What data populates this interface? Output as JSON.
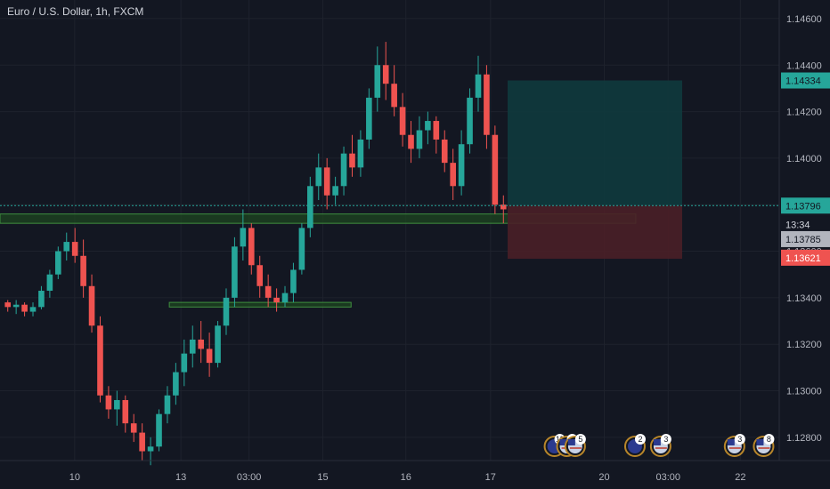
{
  "header": {
    "symbol_title": "Euro / U.S. Dollar, 1h, FXCM"
  },
  "colors": {
    "background": "#131722",
    "grid": "#1e222d",
    "up": "#26a69a",
    "down": "#ef5350",
    "axis_text": "#b2b5be",
    "profit_zone": "#0f3a3d",
    "loss_zone": "#4a1f27",
    "support_zone": "#1e4620",
    "support_border": "#3f8f3f"
  },
  "price_axis": {
    "ticks": [
      "1.14600",
      "1.14400",
      "1.14200",
      "1.14000",
      "1.13800",
      "1.13600",
      "1.13400",
      "1.13200",
      "1.13000",
      "1.12800"
    ],
    "range": [
      1.127,
      1.1468
    ]
  },
  "price_tags": [
    {
      "label": "1.14334",
      "price": 1.14334,
      "bg": "#26a69a",
      "fg": "#131722"
    },
    {
      "label": "1.13796",
      "price": 1.13796,
      "bg": "#26a69a",
      "fg": "#131722"
    },
    {
      "label": "13:34",
      "price": 1.13715,
      "bg": "#131722",
      "fg": "#d1d4dc"
    },
    {
      "label": "1.13785",
      "price": 1.13652,
      "bg": "#b2b5be",
      "fg": "#131722"
    },
    {
      "label": "1.13621",
      "price": 1.13572,
      "bg": "#ef5350",
      "fg": "#ffffff"
    }
  ],
  "time_axis": {
    "labels": [
      "10",
      "13",
      "03:00",
      "15",
      "16",
      "17",
      "20",
      "03:00",
      "22"
    ],
    "positions": [
      0.09,
      0.218,
      0.3,
      0.389,
      0.489,
      0.591,
      0.728,
      0.805,
      0.892
    ]
  },
  "event_markers": [
    {
      "label": "11",
      "flag": "eu",
      "x": 0.668
    },
    {
      "label": "4",
      "flag": "us",
      "x": 0.683
    },
    {
      "label": "5",
      "flag": "us",
      "x": 0.693
    },
    {
      "label": "2",
      "flag": "eu",
      "x": 0.765
    },
    {
      "label": "3",
      "flag": "us",
      "x": 0.796
    },
    {
      "label": "3",
      "flag": "us",
      "x": 0.885
    },
    {
      "label": "8",
      "flag": "us",
      "x": 0.92
    }
  ],
  "chart_data": {
    "type": "candlestick",
    "last_price": 1.13796,
    "position": {
      "entry": 1.13796,
      "target": 1.14334,
      "stop": 1.13621
    },
    "support_zones": [
      {
        "from": 1.1372,
        "to": 1.1376,
        "start": 0,
        "end": 0.766
      },
      {
        "from": 1.1336,
        "to": 1.1338,
        "start": 0.204,
        "end": 0.423
      }
    ],
    "candles": [
      [
        1.1338,
        1.1339,
        1.1334,
        1.1336
      ],
      [
        1.1336,
        1.1339,
        1.1333,
        1.1337
      ],
      [
        1.1337,
        1.1338,
        1.1332,
        1.1334
      ],
      [
        1.1334,
        1.1338,
        1.1332,
        1.1336
      ],
      [
        1.1336,
        1.1345,
        1.1335,
        1.1343
      ],
      [
        1.1343,
        1.1352,
        1.134,
        1.135
      ],
      [
        1.135,
        1.1362,
        1.1348,
        1.136
      ],
      [
        1.136,
        1.1368,
        1.1356,
        1.1364
      ],
      [
        1.1364,
        1.137,
        1.1355,
        1.1358
      ],
      [
        1.1358,
        1.1365,
        1.134,
        1.1345
      ],
      [
        1.1345,
        1.135,
        1.1325,
        1.1328
      ],
      [
        1.1328,
        1.1332,
        1.1295,
        1.1298
      ],
      [
        1.1298,
        1.1302,
        1.1288,
        1.1292
      ],
      [
        1.1292,
        1.13,
        1.1285,
        1.1296
      ],
      [
        1.1296,
        1.1298,
        1.1282,
        1.1286
      ],
      [
        1.1286,
        1.129,
        1.1278,
        1.1282
      ],
      [
        1.1282,
        1.1286,
        1.127,
        1.1274
      ],
      [
        1.1274,
        1.128,
        1.1268,
        1.1276
      ],
      [
        1.1276,
        1.1292,
        1.1274,
        1.129
      ],
      [
        1.129,
        1.1302,
        1.1286,
        1.1298
      ],
      [
        1.1298,
        1.1312,
        1.1294,
        1.1308
      ],
      [
        1.1308,
        1.1322,
        1.1302,
        1.1316
      ],
      [
        1.1316,
        1.1328,
        1.131,
        1.1322
      ],
      [
        1.1322,
        1.133,
        1.1312,
        1.1318
      ],
      [
        1.1318,
        1.1325,
        1.1306,
        1.1312
      ],
      [
        1.1312,
        1.133,
        1.131,
        1.1328
      ],
      [
        1.1328,
        1.1344,
        1.1324,
        1.134
      ],
      [
        1.134,
        1.1366,
        1.1336,
        1.1362
      ],
      [
        1.1362,
        1.1378,
        1.1356,
        1.137
      ],
      [
        1.137,
        1.1372,
        1.135,
        1.1354
      ],
      [
        1.1354,
        1.1358,
        1.134,
        1.1345
      ],
      [
        1.1345,
        1.135,
        1.1336,
        1.134
      ],
      [
        1.134,
        1.1344,
        1.1334,
        1.1338
      ],
      [
        1.1338,
        1.1345,
        1.1336,
        1.1342
      ],
      [
        1.1342,
        1.1355,
        1.1338,
        1.1352
      ],
      [
        1.1352,
        1.1372,
        1.135,
        1.137
      ],
      [
        1.137,
        1.1392,
        1.1366,
        1.1388
      ],
      [
        1.1388,
        1.1402,
        1.1382,
        1.1396
      ],
      [
        1.1396,
        1.14,
        1.1378,
        1.1384
      ],
      [
        1.1384,
        1.1392,
        1.138,
        1.1388
      ],
      [
        1.1388,
        1.1405,
        1.1384,
        1.1402
      ],
      [
        1.1402,
        1.141,
        1.1392,
        1.1396
      ],
      [
        1.1396,
        1.1412,
        1.1392,
        1.1408
      ],
      [
        1.1408,
        1.143,
        1.1404,
        1.1426
      ],
      [
        1.1426,
        1.1448,
        1.142,
        1.144
      ],
      [
        1.144,
        1.145,
        1.1425,
        1.1432
      ],
      [
        1.1432,
        1.144,
        1.1418,
        1.1422
      ],
      [
        1.1422,
        1.1428,
        1.1405,
        1.141
      ],
      [
        1.141,
        1.1416,
        1.1398,
        1.1404
      ],
      [
        1.1404,
        1.1418,
        1.14,
        1.1412
      ],
      [
        1.1412,
        1.142,
        1.1406,
        1.1416
      ],
      [
        1.1416,
        1.1418,
        1.1402,
        1.1408
      ],
      [
        1.1408,
        1.1412,
        1.1394,
        1.1398
      ],
      [
        1.1398,
        1.1404,
        1.1382,
        1.1388
      ],
      [
        1.1388,
        1.1412,
        1.1384,
        1.1406
      ],
      [
        1.1406,
        1.143,
        1.1402,
        1.1426
      ],
      [
        1.1426,
        1.1444,
        1.142,
        1.1436
      ],
      [
        1.1436,
        1.144,
        1.1404,
        1.141
      ],
      [
        1.141,
        1.1414,
        1.1376,
        1.138
      ],
      [
        1.138,
        1.1384,
        1.1372,
        1.1378
      ]
    ]
  }
}
